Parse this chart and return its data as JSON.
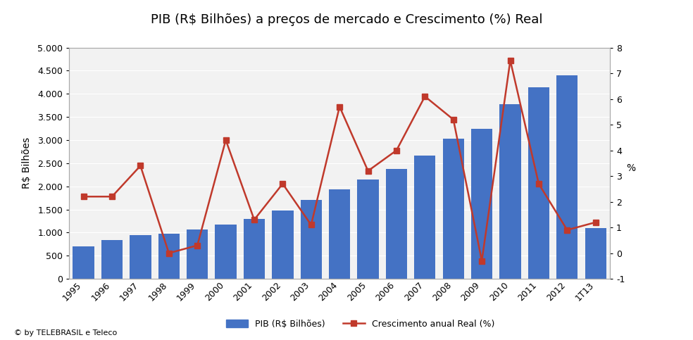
{
  "categories": [
    "1995",
    "1996",
    "1997",
    "1998",
    "1999",
    "2000",
    "2001",
    "2002",
    "2003",
    "2004",
    "2005",
    "2006",
    "2007",
    "2008",
    "2009",
    "2010",
    "2011",
    "2012",
    "1T13"
  ],
  "pib_values": [
    705,
    843,
    939,
    979,
    1065,
    1179,
    1302,
    1477,
    1699,
    1941,
    2147,
    2369,
    2661,
    3032,
    3239,
    3770,
    4143,
    4403,
    1100
  ],
  "crescimento_values": [
    2.2,
    2.2,
    3.4,
    0.0,
    0.3,
    4.4,
    1.3,
    2.7,
    1.1,
    5.7,
    3.2,
    4.0,
    6.1,
    5.2,
    -0.3,
    7.5,
    2.7,
    0.9,
    1.2
  ],
  "bar_color": "#4472C4",
  "line_color": "#C0392B",
  "title": "PIB (R$ Bilhões) a preços de mercado e Crescimento (%) Real",
  "ylabel_left": "R$ Bilhões",
  "ylabel_right": "%",
  "ylim_left": [
    0,
    5000
  ],
  "ylim_right": [
    -1,
    8
  ],
  "yticks_left": [
    0,
    500,
    1000,
    1500,
    2000,
    2500,
    3000,
    3500,
    4000,
    4500,
    5000
  ],
  "yticks_right": [
    -1,
    0,
    1,
    2,
    3,
    4,
    5,
    6,
    7,
    8
  ],
  "legend_bar": "PIB (R$ Bilhões)",
  "legend_line": "Crescimento anual Real (%)",
  "footer": "© by TELEBRASIL e Teleco",
  "title_fontsize": 13,
  "axis_fontsize": 9,
  "label_fontsize": 10,
  "background_color": "#FFFFFF",
  "plot_bg_color": "#F2F2F2",
  "border_color": "#AAAAAA"
}
